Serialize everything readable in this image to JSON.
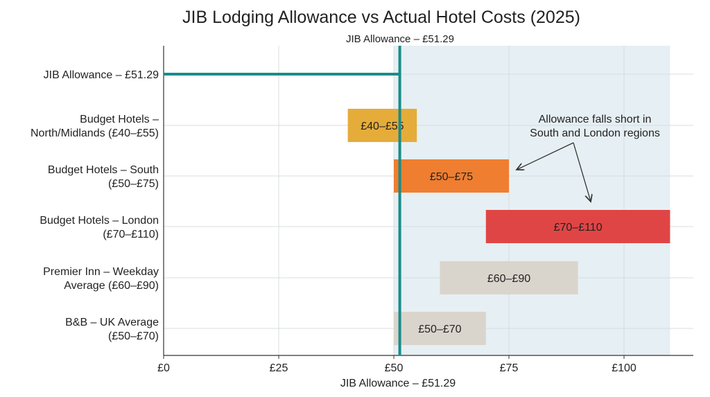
{
  "chart_data": {
    "type": "bar",
    "subtype": "floating-range-horizontal",
    "title": "JIB Lodging Allowance vs Actual Hotel Costs (2025)",
    "top_label": "JIB Allowance – £51.29",
    "bottom_label": "JIB Allowance – £51.29",
    "xlim": [
      0,
      115
    ],
    "x_ticks": [
      0,
      25,
      50,
      75,
      100
    ],
    "x_tick_labels": [
      "£0",
      "£25",
      "£50",
      "£75",
      "£100"
    ],
    "grid": true,
    "allowance": {
      "value": 51.29,
      "label": "JIB Allowance – £51.29",
      "color": "#1A8C8A"
    },
    "shaded_region": {
      "from": 50,
      "to": 110,
      "color": "#E6EFF3"
    },
    "categories": [
      "JIB Allowance – £51.29",
      "Budget Hotels – North/Midlands (£40–£55)",
      "Budget Hotels – South (£50–£75)",
      "Budget Hotels – London (£70–£110)",
      "Premier Inn – Weekday Average (£60–£90)",
      "B&B – UK Average (£50–£70)"
    ],
    "category_lines": [
      [
        "JIB Allowance – £51.29"
      ],
      [
        "Budget Hotels –",
        "North/Midlands (£40–£55)"
      ],
      [
        "Budget Hotels – South",
        "(£50–£75)"
      ],
      [
        "Budget Hotels – London",
        "(£70–£110)"
      ],
      [
        "Premier Inn – Weekday",
        "Average (£60–£90)"
      ],
      [
        "B&B – UK Average",
        "(£50–£70)"
      ]
    ],
    "ranges": [
      null,
      {
        "low": 40,
        "high": 55,
        "label": "£40–£55",
        "color": "#E5AC3A"
      },
      {
        "low": 50,
        "high": 75,
        "label": "£50–£75",
        "color": "#EF7E30"
      },
      {
        "low": 70,
        "high": 110,
        "label": "£70–£110",
        "color": "#E04545"
      },
      {
        "low": 60,
        "high": 90,
        "label": "£60–£90",
        "color": "#DAD5CC"
      },
      {
        "low": 50,
        "high": 70,
        "label": "£50–£70",
        "color": "#DAD5CC"
      }
    ],
    "annotation": {
      "lines": [
        "Allowance falls short in",
        "South and London regions"
      ],
      "points_to": [
        "Budget Hotels – South",
        "Budget Hotels – London"
      ]
    }
  }
}
